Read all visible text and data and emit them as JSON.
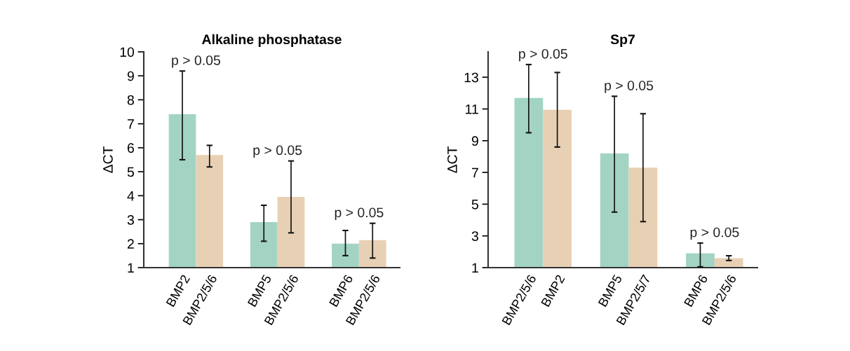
{
  "chart_data": [
    {
      "type": "bar",
      "title": "Alkaline phosphatase",
      "ylabel": "ΔCT",
      "categories": [
        "BMP2",
        "BMP2/5/6",
        "BMP5",
        "BMP2/5/6",
        "BMP6",
        "BMP2/5/6"
      ],
      "values": [
        7.4,
        5.7,
        2.9,
        3.95,
        2.0,
        2.15
      ],
      "errors": [
        [
          5.5,
          9.2
        ],
        [
          5.2,
          6.1
        ],
        [
          2.1,
          3.6
        ],
        [
          2.45,
          5.45
        ],
        [
          1.5,
          2.55
        ],
        [
          1.4,
          2.85
        ]
      ],
      "colors": [
        "#a3d4c3",
        "#e8d0b5",
        "#a3d4c3",
        "#e8d0b5",
        "#a3d4c3",
        "#e8d0b5"
      ],
      "ylim": [
        1,
        10
      ],
      "yticks": [
        1,
        2,
        3,
        4,
        5,
        6,
        7,
        8,
        9,
        10
      ],
      "grid": false,
      "legend": false,
      "annotations": [
        "p > 0.05",
        "p > 0.05",
        "p > 0.05"
      ]
    },
    {
      "type": "bar",
      "title": "Sp7",
      "ylabel": "ΔCT",
      "categories": [
        "BMP2/5/6",
        "BMP2",
        "BMP5",
        "BMP2/5/7",
        "BMP6",
        "BMP2/5/6"
      ],
      "values": [
        11.7,
        10.95,
        8.2,
        7.3,
        1.9,
        1.6
      ],
      "errors": [
        [
          9.5,
          13.8
        ],
        [
          8.6,
          13.3
        ],
        [
          4.5,
          11.8
        ],
        [
          3.9,
          10.7
        ],
        [
          1.05,
          2.55
        ],
        [
          1.45,
          1.75
        ]
      ],
      "colors": [
        "#a3d4c3",
        "#e8d0b5",
        "#a3d4c3",
        "#e8d0b5",
        "#a3d4c3",
        "#e8d0b5"
      ],
      "ylim": [
        1,
        14.6
      ],
      "yticks": [
        1,
        3,
        5,
        7,
        9,
        11,
        13
      ],
      "grid": false,
      "legend": false,
      "annotations": [
        "p > 0.05",
        "p > 0.05",
        "p > 0.05"
      ]
    }
  ]
}
